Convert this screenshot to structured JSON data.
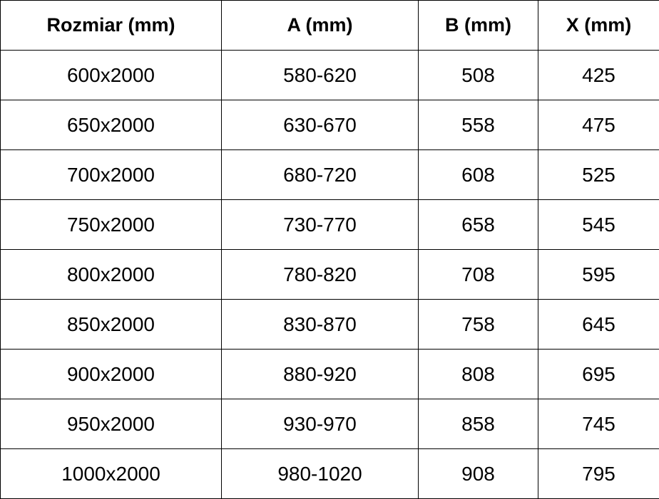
{
  "table": {
    "headers": [
      "Rozmiar (mm)",
      "A (mm)",
      "B (mm)",
      "X (mm)"
    ],
    "rows": [
      [
        "600x2000",
        "580-620",
        "508",
        "425"
      ],
      [
        "650x2000",
        "630-670",
        "558",
        "475"
      ],
      [
        "700x2000",
        "680-720",
        "608",
        "525"
      ],
      [
        "750x2000",
        "730-770",
        "658",
        "545"
      ],
      [
        "800x2000",
        "780-820",
        "708",
        "595"
      ],
      [
        "850x2000",
        "830-870",
        "758",
        "645"
      ],
      [
        "900x2000",
        "880-920",
        "808",
        "695"
      ],
      [
        "950x2000",
        "930-970",
        "858",
        "745"
      ],
      [
        "1000x2000",
        "980-1020",
        "908",
        "795"
      ]
    ]
  }
}
